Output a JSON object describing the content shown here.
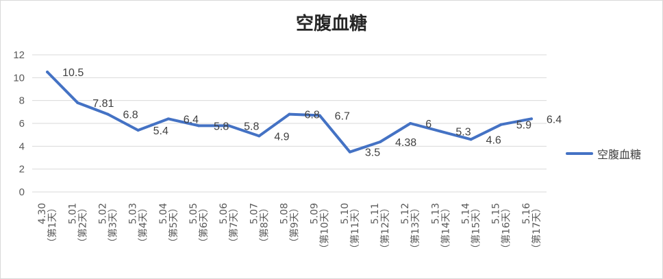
{
  "chart_data": {
    "type": "line",
    "title": "空腹血糖",
    "xlabel": "",
    "ylabel": "",
    "ylim": [
      0,
      12
    ],
    "yticks": [
      "0",
      "2",
      "4",
      "6",
      "8",
      "10",
      "12"
    ],
    "categories": [
      "4.30 （第1天）",
      "5.01 （第2天）",
      "5.02 （第3天）",
      "5.03 （第4天）",
      "5.04 （第5天）",
      "5.05 （第6天）",
      "5.06 （第7天）",
      "5.07 （第8天）",
      "5.08 （第9天）",
      "5.09 （第10天）",
      "5.10 （第11天）",
      "5.11 （第12天）",
      "5.12 （第13天）",
      "5.13 （第14天）",
      "5.14 （第15天）",
      "5.15 （第16天）",
      "5.16 （第17天）"
    ],
    "series": [
      {
        "name": "空腹血糖",
        "values": [
          10.5,
          7.81,
          6.8,
          5.4,
          6.4,
          5.8,
          5.8,
          4.9,
          6.8,
          6.7,
          3.5,
          4.38,
          6,
          5.3,
          4.6,
          5.9,
          6.4
        ],
        "labels": [
          "10.5",
          "7.81",
          "6.8",
          "5.4",
          "6.4",
          "5.8",
          "5.8",
          "4.9",
          "6.8",
          "6.7",
          "3.5",
          "4.38",
          "6",
          "5.3",
          "4.6",
          "5.9",
          "6.4"
        ],
        "color": "#4472C4"
      }
    ],
    "grid": true,
    "legend": "right"
  }
}
